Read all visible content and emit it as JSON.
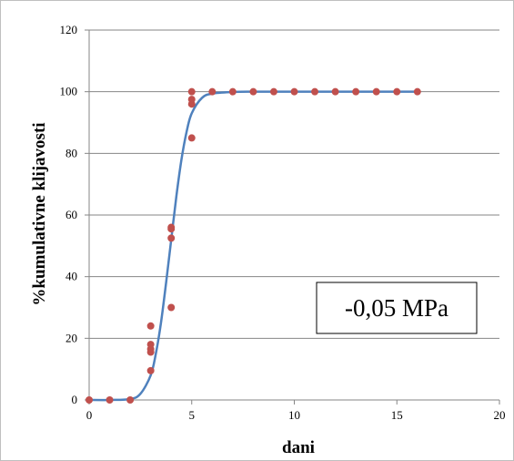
{
  "chart_data": {
    "type": "scatter",
    "xlabel": "dani",
    "ylabel": "%kumulativne klijavosti",
    "xlim": [
      0,
      20
    ],
    "ylim": [
      0,
      120
    ],
    "xticks": [
      0,
      5,
      10,
      15,
      20
    ],
    "yticks": [
      0,
      20,
      40,
      60,
      80,
      100,
      120
    ],
    "grid": "horizontal",
    "legend": "none",
    "annotation": "-0,05 MPa",
    "colors": {
      "points": "#c0504d",
      "curve": "#4f81bd"
    },
    "series": [
      {
        "type": "scatter",
        "points": [
          [
            0,
            0
          ],
          [
            1,
            0
          ],
          [
            2,
            0
          ],
          [
            3,
            9.5
          ],
          [
            3,
            15.5
          ],
          [
            3,
            16.5
          ],
          [
            3,
            18
          ],
          [
            3,
            24
          ],
          [
            4,
            30
          ],
          [
            4,
            52.5
          ],
          [
            4,
            55.5
          ],
          [
            4,
            56
          ],
          [
            5,
            85
          ],
          [
            5,
            96
          ],
          [
            5,
            97.5
          ],
          [
            5,
            100
          ],
          [
            6,
            100
          ],
          [
            7,
            100
          ],
          [
            8,
            100
          ],
          [
            9,
            100
          ],
          [
            10,
            100
          ],
          [
            11,
            100
          ],
          [
            12,
            100
          ],
          [
            13,
            100
          ],
          [
            14,
            100
          ],
          [
            15,
            100
          ],
          [
            16,
            100
          ]
        ]
      },
      {
        "type": "line",
        "points": [
          [
            0,
            0
          ],
          [
            1,
            0
          ],
          [
            2,
            0.3
          ],
          [
            2.5,
            2
          ],
          [
            3,
            8
          ],
          [
            3.25,
            15
          ],
          [
            3.5,
            25
          ],
          [
            3.75,
            38
          ],
          [
            4,
            52
          ],
          [
            4.25,
            66
          ],
          [
            4.5,
            78
          ],
          [
            4.75,
            87
          ],
          [
            5,
            93
          ],
          [
            5.5,
            98
          ],
          [
            6,
            99.4
          ],
          [
            7,
            99.9
          ],
          [
            8,
            100
          ],
          [
            12,
            100
          ],
          [
            16,
            100
          ]
        ]
      }
    ]
  }
}
